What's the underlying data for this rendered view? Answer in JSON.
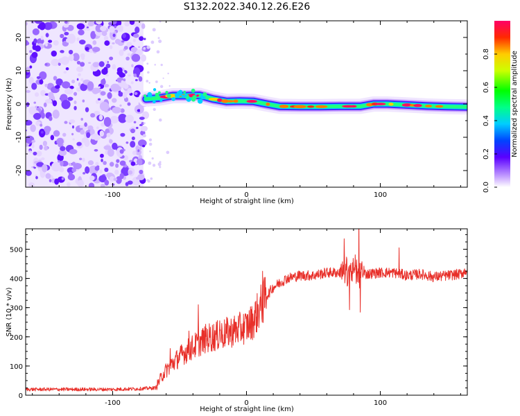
{
  "figure_title": "S132.2022.340.12.26.E26",
  "colors": {
    "snr_line": "#e8302a",
    "axes": "#000000",
    "background": "#ffffff"
  },
  "chart_data": [
    {
      "type": "heatmap",
      "name": "spectrogram",
      "xlabel": "Height of straight line (km)",
      "ylabel": "Frequency (Hz)",
      "xlim": [
        -165,
        165
      ],
      "ylim": [
        -25,
        25
      ],
      "xticks": [
        -100,
        0,
        100
      ],
      "xtick_labels": [
        "-100",
        "0",
        "100"
      ],
      "yticks": [
        -20,
        -10,
        0,
        10,
        20
      ],
      "ytick_labels": [
        "-20",
        "-10",
        "0",
        "10",
        "20"
      ],
      "noise_region_x": [
        -165,
        -77
      ],
      "ridge": [
        {
          "x": -75,
          "f": 1.5
        },
        {
          "x": -65,
          "f": 1.8
        },
        {
          "x": -55,
          "f": 2.5
        },
        {
          "x": -45,
          "f": 2.5
        },
        {
          "x": -35,
          "f": 2.6
        },
        {
          "x": -25,
          "f": 1.5
        },
        {
          "x": -15,
          "f": 0.8
        },
        {
          "x": -5,
          "f": 0.9
        },
        {
          "x": 5,
          "f": 0.8
        },
        {
          "x": 15,
          "f": 0.0
        },
        {
          "x": 25,
          "f": -0.7
        },
        {
          "x": 40,
          "f": -0.8
        },
        {
          "x": 55,
          "f": -0.8
        },
        {
          "x": 70,
          "f": -0.7
        },
        {
          "x": 85,
          "f": -0.7
        },
        {
          "x": 95,
          "f": 0.0
        },
        {
          "x": 105,
          "f": 0.0
        },
        {
          "x": 120,
          "f": -0.3
        },
        {
          "x": 135,
          "f": -0.6
        },
        {
          "x": 150,
          "f": -0.8
        },
        {
          "x": 165,
          "f": -0.9
        }
      ],
      "colorbar": {
        "label": "Normalized spectral amplitude",
        "range": [
          0,
          1
        ],
        "ticks": [
          0.0,
          0.2,
          0.4,
          0.6,
          0.8
        ],
        "tick_labels": [
          "0.0",
          "0.2",
          "0.4",
          "0.6",
          "0.8"
        ]
      }
    },
    {
      "type": "line",
      "name": "snr",
      "xlabel": "Height of straight line (km)",
      "ylabel": "SNR (10 * v/v)",
      "xlim": [
        -165,
        165
      ],
      "ylim": [
        0,
        570
      ],
      "xticks": [
        -100,
        0,
        100
      ],
      "xtick_labels": [
        "-100",
        "0",
        "100"
      ],
      "yticks": [
        0,
        100,
        200,
        300,
        400,
        500
      ],
      "ytick_labels": [
        "0",
        "100",
        "200",
        "300",
        "400",
        "500"
      ],
      "series": [
        {
          "name": "SNR",
          "x": [
            -165,
            -140,
            -120,
            -100,
            -80,
            -68,
            -62,
            -55,
            -48,
            -40,
            -30,
            -20,
            -10,
            0,
            5,
            10,
            15,
            20,
            25,
            30,
            40,
            50,
            60,
            70,
            80,
            90,
            100,
            110,
            120,
            130,
            140,
            150,
            160,
            165
          ],
          "y": [
            20,
            20,
            20,
            20,
            22,
            25,
            75,
            110,
            140,
            165,
            195,
            205,
            220,
            235,
            255,
            300,
            340,
            370,
            385,
            400,
            410,
            410,
            420,
            420,
            425,
            415,
            420,
            420,
            410,
            415,
            405,
            410,
            415,
            430
          ],
          "spikes": [
            {
              "x": -57,
              "y": 160
            },
            {
              "x": -43,
              "y": 220
            },
            {
              "x": -36,
              "y": 310
            },
            {
              "x": -20,
              "y": 255
            },
            {
              "x": -5,
              "y": 285
            },
            {
              "x": 12,
              "y": 425
            },
            {
              "x": 73,
              "y": 520
            },
            {
              "x": 77,
              "y": 300
            },
            {
              "x": 84,
              "y": 570
            },
            {
              "x": 85,
              "y": 245
            },
            {
              "x": 114,
              "y": 505
            }
          ]
        }
      ]
    }
  ]
}
